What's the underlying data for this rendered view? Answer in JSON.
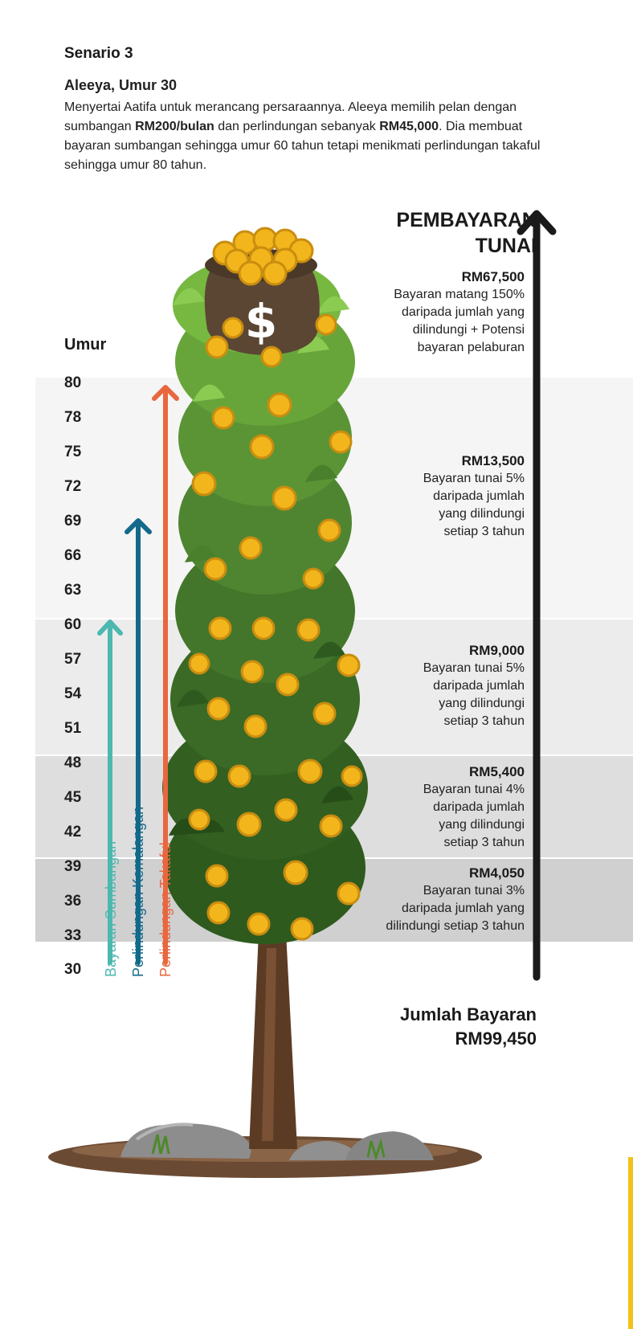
{
  "header": {
    "title": "Senario 3",
    "person": "Aleeya, Umur 30",
    "intro_1": "Menyertai Aatifa untuk merancang persaraannya. Aleeya memilih pelan dengan sumbangan ",
    "intro_amount": "RM200/bulan",
    "intro_2": " dan perlindungan sebanyak ",
    "intro_cover": "RM45,000",
    "intro_3": ". Dia membuat bayaran sumbangan sehingga umur 60 tahun tetapi menikmati perlindungan takaful sehingga umur 80 tahun."
  },
  "age_axis": {
    "label": "Umur",
    "ticks": [
      "80",
      "78",
      "75",
      "72",
      "69",
      "66",
      "63",
      "60",
      "57",
      "54",
      "51",
      "48",
      "45",
      "42",
      "39",
      "36",
      "33",
      "30"
    ]
  },
  "arrows": {
    "contribution": {
      "label": "Bayaran Sumbangan",
      "color": "#4db8b0",
      "to_age": 60
    },
    "lifetime": {
      "label": "Perlindungan Kemalangan",
      "color": "#13698a",
      "to_age": 69
    },
    "takaful": {
      "label": "Perlindungan Takaful",
      "color": "#e8673f",
      "to_age": 80
    }
  },
  "payouts": {
    "title_line1": "PEMBAYARAN",
    "title_line2": "TUNAI",
    "items": [
      {
        "amount": "RM67,500",
        "lines": [
          "Bayaran matang 150%",
          "daripada jumlah yang",
          "dilindungi + Potensi",
          "bayaran pelaburan"
        ]
      },
      {
        "amount": "RM13,500",
        "lines": [
          "Bayaran tunai 5%",
          "daripada jumlah",
          "yang dilindungi",
          "setiap 3 tahun"
        ]
      },
      {
        "amount": "RM9,000",
        "lines": [
          "Bayaran tunai 5%",
          "daripada jumlah",
          "yang dilindungi",
          "setiap 3 tahun"
        ]
      },
      {
        "amount": "RM5,400",
        "lines": [
          "Bayaran tunai 4%",
          "daripada jumlah",
          "yang dilindungi",
          "setiap 3 tahun"
        ]
      },
      {
        "amount": "RM4,050",
        "lines": [
          "Bayaran tunai 3%",
          "daripada jumlah yang",
          "dilindungi setiap 3 tahun"
        ]
      }
    ],
    "total_label": "Jumlah Bayaran",
    "total_value": "RM99,450"
  },
  "colors": {
    "band_light": "#f4f4f4",
    "band_mid": "#ebebeb",
    "band_dark1": "#dcdcdc",
    "band_dark2": "#cfcfcf",
    "main_arrow": "#1a1a1a",
    "foliage_light": "#7cc244",
    "foliage_dark": "#2e5a1e",
    "coin": "#f2b51c",
    "trunk": "#5c3b24"
  },
  "icons": [
    "money-bag-icon",
    "gold-coin-icon",
    "arrow-up-icon"
  ]
}
